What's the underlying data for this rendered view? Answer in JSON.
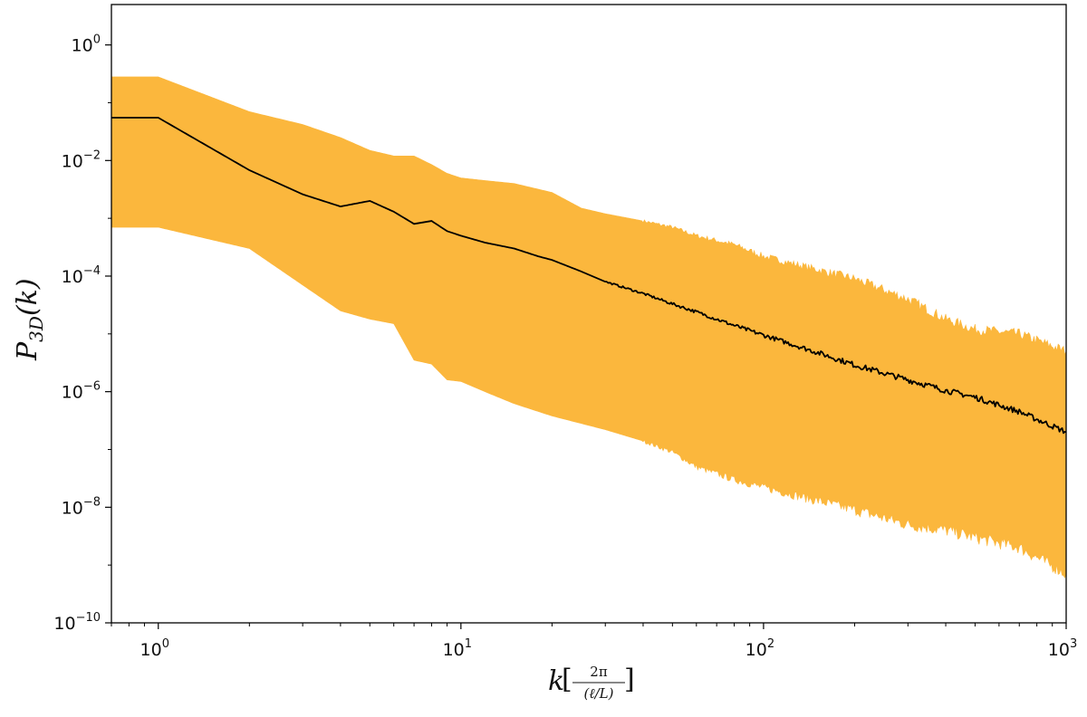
{
  "chart_data": {
    "type": "line",
    "title": "",
    "xlabel": {
      "main": "k",
      "fraction_numerator": "2π",
      "fraction_denominator": "(ℓ/L)"
    },
    "ylabel": {
      "main": "P",
      "subscript": "3D",
      "suffix": "(k)"
    },
    "x_scale": "log",
    "y_scale": "log",
    "xlim": [
      0.7,
      1000
    ],
    "ylim": [
      1e-10,
      5
    ],
    "x_ticks": [
      {
        "value": 1,
        "base": "10",
        "exp": "0"
      },
      {
        "value": 10,
        "base": "10",
        "exp": "1"
      },
      {
        "value": 100,
        "base": "10",
        "exp": "2"
      },
      {
        "value": 1000,
        "base": "10",
        "exp": "3"
      }
    ],
    "y_ticks": [
      {
        "value": 1,
        "base": "10",
        "exp": "0"
      },
      {
        "value": 0.01,
        "base": "10",
        "exp": "−2"
      },
      {
        "value": 0.0001,
        "base": "10",
        "exp": "−4"
      },
      {
        "value": 1e-06,
        "base": "10",
        "exp": "−6"
      },
      {
        "value": 1e-08,
        "base": "10",
        "exp": "−8"
      },
      {
        "value": 1e-10,
        "base": "10",
        "exp": "−10"
      }
    ],
    "grid": false,
    "legend": "none",
    "colors": {
      "band": "#fbb73d",
      "line": "#000000",
      "axes": "#000000"
    },
    "series": [
      {
        "role": "mean-line",
        "points": [
          [
            0.7,
            0.055
          ],
          [
            1,
            0.055
          ],
          [
            2,
            0.0068
          ],
          [
            3,
            0.0026
          ],
          [
            4,
            0.0016
          ],
          [
            5,
            0.002
          ],
          [
            6,
            0.0013
          ],
          [
            7,
            0.0008
          ],
          [
            8,
            0.0009
          ],
          [
            9,
            0.0006
          ],
          [
            10,
            0.0005
          ],
          [
            12,
            0.00038
          ],
          [
            15,
            0.0003
          ],
          [
            18,
            0.00022
          ],
          [
            20,
            0.00019
          ],
          [
            25,
            0.00012
          ],
          [
            30,
            8e-05
          ],
          [
            40,
            5e-05
          ],
          [
            50,
            3.3e-05
          ],
          [
            60,
            2.4e-05
          ],
          [
            80,
            1.4e-05
          ],
          [
            100,
            9.5e-06
          ],
          [
            150,
            4.8e-06
          ],
          [
            200,
            2.9e-06
          ],
          [
            300,
            1.6e-06
          ],
          [
            400,
            1.05e-06
          ],
          [
            500,
            8e-07
          ],
          [
            700,
            4.5e-07
          ],
          [
            1000,
            2e-07
          ]
        ]
      },
      {
        "role": "spread-band",
        "upper": [
          [
            0.7,
            0.28
          ],
          [
            1,
            0.28
          ],
          [
            2,
            0.07
          ],
          [
            3,
            0.042
          ],
          [
            4,
            0.025
          ],
          [
            5,
            0.015
          ],
          [
            6,
            0.012
          ],
          [
            7,
            0.012
          ],
          [
            8,
            0.0085
          ],
          [
            9,
            0.006
          ],
          [
            10,
            0.005
          ],
          [
            12,
            0.0045
          ],
          [
            15,
            0.004
          ],
          [
            20,
            0.0028
          ],
          [
            25,
            0.0015
          ],
          [
            30,
            0.0012
          ],
          [
            40,
            0.0009
          ],
          [
            50,
            0.0007
          ],
          [
            60,
            0.0005
          ],
          [
            80,
            0.00035
          ],
          [
            100,
            0.00022
          ],
          [
            150,
            0.00013
          ],
          [
            200,
            9e-05
          ],
          [
            300,
            4e-05
          ],
          [
            400,
            1.8e-05
          ],
          [
            500,
            1.2e-05
          ],
          [
            700,
            1e-05
          ],
          [
            1000,
            5e-06
          ]
        ],
        "lower": [
          [
            0.7,
            0.0007
          ],
          [
            1,
            0.0007
          ],
          [
            2,
            0.0003
          ],
          [
            3,
            7e-05
          ],
          [
            4,
            2.5e-05
          ],
          [
            5,
            1.8e-05
          ],
          [
            6,
            1.5e-05
          ],
          [
            7,
            3.5e-06
          ],
          [
            8,
            3e-06
          ],
          [
            9,
            1.6e-06
          ],
          [
            10,
            1.5e-06
          ],
          [
            12,
            1e-06
          ],
          [
            15,
            6.2e-07
          ],
          [
            20,
            3.8e-07
          ],
          [
            30,
            2.2e-07
          ],
          [
            40,
            1.4e-07
          ],
          [
            50,
            9e-08
          ],
          [
            60,
            5e-08
          ],
          [
            80,
            3e-08
          ],
          [
            100,
            2.2e-08
          ],
          [
            150,
            1.3e-08
          ],
          [
            200,
            9e-09
          ],
          [
            300,
            5e-09
          ],
          [
            400,
            4e-09
          ],
          [
            500,
            3e-09
          ],
          [
            700,
            2e-09
          ],
          [
            1000,
            7e-10
          ]
        ]
      }
    ]
  }
}
